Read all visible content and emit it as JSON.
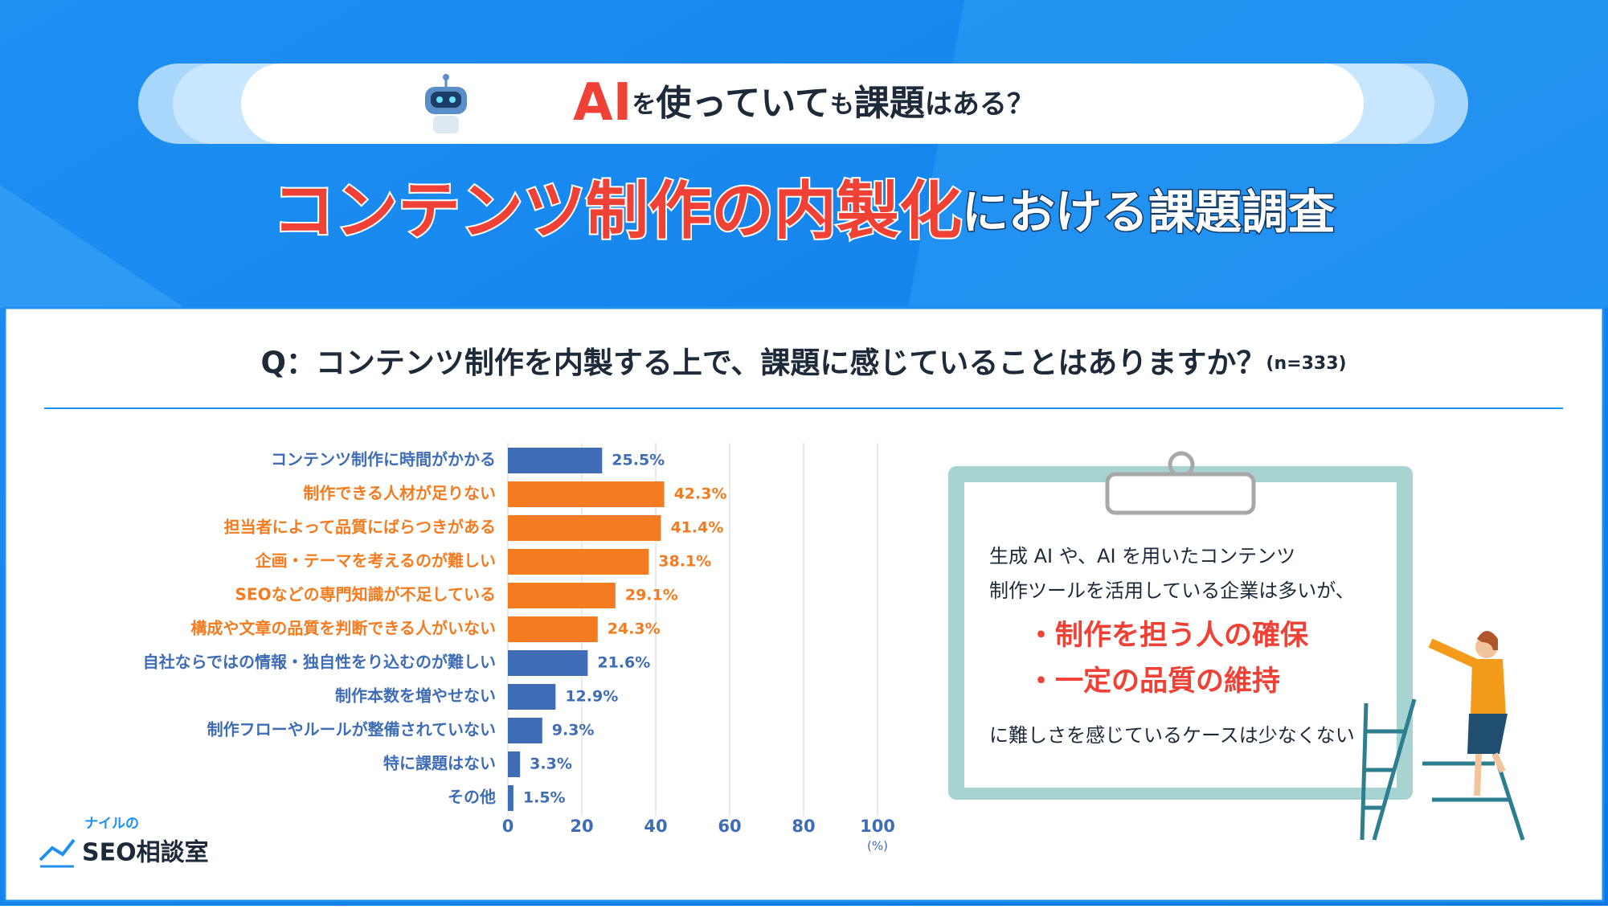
{
  "header": {
    "badge": [
      "AI",
      "を",
      "使っていて",
      "も",
      "課題",
      "はある？"
    ],
    "title": [
      "コンテンツ制作の内製化",
      "における課題調査"
    ]
  },
  "question": [
    "Q：コンテンツ制作を内製する上で、課題に感じていることはありますか？",
    "(n=333)"
  ],
  "chart_data": {
    "type": "bar",
    "orientation": "horizontal",
    "categories": [
      "コンテンツ制作に時間がかかる",
      "制作できる人材が足りない",
      "担当者によって品質にばらつきがある",
      "企画・テーマを考えるのが難しい",
      "SEOなどの専門知識が不足している",
      "構成や文章の品質を判断できる人がいない",
      "自社ならではの情報・独自性をり込むのが難しい",
      "制作本数を増やせない",
      "制作フローやルールが整備されていない",
      "特に課題はない",
      "その他"
    ],
    "values": [
      25.5,
      42.3,
      41.4,
      38.1,
      29.1,
      24.3,
      21.6,
      12.9,
      9.3,
      3.3,
      1.5
    ],
    "value_labels": [
      "25.5%",
      "42.3%",
      "41.4%",
      "38.1%",
      "29.1%",
      "24.3%",
      "21.6%",
      "12.9%",
      "9.3%",
      "3.3%",
      "1.5%"
    ],
    "colors": [
      "#3f6db5",
      "#f47b20",
      "#f47b20",
      "#f47b20",
      "#f47b20",
      "#f47b20",
      "#3f6db5",
      "#3f6db5",
      "#3f6db5",
      "#3f6db5",
      "#3f6db5"
    ],
    "xlim": [
      0,
      100
    ],
    "xticks": [
      0,
      20,
      40,
      60,
      80,
      100
    ],
    "xlabel": "(%)",
    "grid": true
  },
  "note": {
    "lines": [
      "生成 AI や、AI を用いたコンテンツ",
      "制作ツールを活用している企業は多いが、"
    ],
    "bullets": [
      "・制作を担う人の確保",
      "・一定の品質の維持"
    ],
    "conclusion": "に難しさを感じているケースは少なくない"
  },
  "logo": {
    "small": "ナイルの",
    "main": "SEO相談室"
  }
}
